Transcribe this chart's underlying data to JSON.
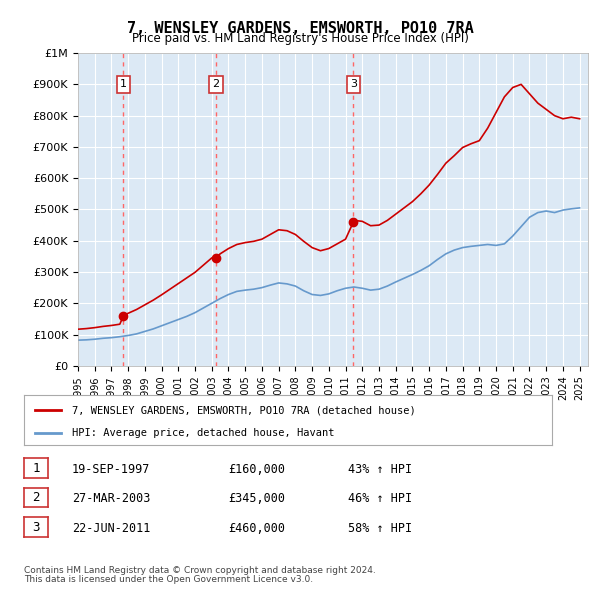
{
  "title": "7, WENSLEY GARDENS, EMSWORTH, PO10 7RA",
  "subtitle": "Price paid vs. HM Land Registry's House Price Index (HPI)",
  "background_color": "#dce9f5",
  "plot_bg_color": "#dce9f5",
  "sales": [
    {
      "date": "1997-09-19",
      "price": 160000,
      "label": "1",
      "x": 1997.72
    },
    {
      "date": "2003-03-27",
      "price": 345000,
      "label": "2",
      "x": 2003.24
    },
    {
      "date": "2011-06-22",
      "price": 460000,
      "label": "3",
      "x": 2011.47
    }
  ],
  "sale_labels": [
    {
      "num": "1",
      "date": "19-SEP-1997",
      "price": "£160,000",
      "hpi": "43% ↑ HPI"
    },
    {
      "num": "2",
      "date": "27-MAR-2003",
      "price": "£345,000",
      "hpi": "46% ↑ HPI"
    },
    {
      "num": "3",
      "date": "22-JUN-2011",
      "price": "£460,000",
      "hpi": "58% ↑ HPI"
    }
  ],
  "legend_line1": "7, WENSLEY GARDENS, EMSWORTH, PO10 7RA (detached house)",
  "legend_line2": "HPI: Average price, detached house, Havant",
  "footer1": "Contains HM Land Registry data © Crown copyright and database right 2024.",
  "footer2": "This data is licensed under the Open Government Licence v3.0.",
  "red_line_color": "#cc0000",
  "blue_line_color": "#6699cc",
  "marker_color": "#cc0000",
  "vline_color": "#ff6666",
  "ylim": [
    0,
    1000000
  ],
  "yticks": [
    0,
    100000,
    200000,
    300000,
    400000,
    500000,
    600000,
    700000,
    800000,
    900000,
    1000000
  ],
  "ytick_labels": [
    "£0",
    "£100K",
    "£200K",
    "£300K",
    "£400K",
    "£500K",
    "£600K",
    "£700K",
    "£800K",
    "£900K",
    "£1M"
  ],
  "xlim": [
    1995,
    2025.5
  ],
  "hpi_data_x": [
    1995,
    1995.5,
    1996,
    1996.5,
    1997,
    1997.5,
    1998,
    1998.5,
    1999,
    1999.5,
    2000,
    2000.5,
    2001,
    2001.5,
    2002,
    2002.5,
    2003,
    2003.5,
    2004,
    2004.5,
    2005,
    2005.5,
    2006,
    2006.5,
    2007,
    2007.5,
    2008,
    2008.5,
    2009,
    2009.5,
    2010,
    2010.5,
    2011,
    2011.5,
    2012,
    2012.5,
    2013,
    2013.5,
    2014,
    2014.5,
    2015,
    2015.5,
    2016,
    2016.5,
    2017,
    2017.5,
    2018,
    2018.5,
    2019,
    2019.5,
    2020,
    2020.5,
    2021,
    2021.5,
    2022,
    2022.5,
    2023,
    2023.5,
    2024,
    2024.5,
    2025
  ],
  "hpi_data_y": [
    82000,
    83000,
    85000,
    88000,
    90000,
    93000,
    97000,
    102000,
    110000,
    118000,
    128000,
    138000,
    148000,
    158000,
    170000,
    185000,
    200000,
    215000,
    228000,
    238000,
    242000,
    245000,
    250000,
    258000,
    265000,
    262000,
    255000,
    240000,
    228000,
    225000,
    230000,
    240000,
    248000,
    252000,
    248000,
    242000,
    245000,
    255000,
    268000,
    280000,
    292000,
    305000,
    320000,
    340000,
    358000,
    370000,
    378000,
    382000,
    385000,
    388000,
    385000,
    390000,
    415000,
    445000,
    475000,
    490000,
    495000,
    490000,
    498000,
    502000,
    505000
  ],
  "red_data_x": [
    1995,
    1995.5,
    1996,
    1996.5,
    1997,
    1997.5,
    1997.72,
    1998,
    1998.5,
    1999,
    1999.5,
    2000,
    2000.5,
    2001,
    2001.5,
    2002,
    2002.5,
    2003,
    2003.24,
    2003.5,
    2004,
    2004.5,
    2005,
    2005.5,
    2006,
    2006.5,
    2007,
    2007.5,
    2008,
    2008.5,
    2009,
    2009.5,
    2010,
    2010.5,
    2011,
    2011.47,
    2011.5,
    2012,
    2012.5,
    2013,
    2013.5,
    2014,
    2014.5,
    2015,
    2015.5,
    2016,
    2016.5,
    2017,
    2017.5,
    2018,
    2018.5,
    2019,
    2019.5,
    2020,
    2020.5,
    2021,
    2021.5,
    2022,
    2022.5,
    2023,
    2023.5,
    2024,
    2024.5,
    2025
  ],
  "red_data_y": [
    117000,
    119000,
    122000,
    126000,
    129000,
    133000,
    160000,
    168000,
    180000,
    195000,
    210000,
    227000,
    245000,
    263000,
    281000,
    299000,
    322000,
    345000,
    345000,
    358000,
    375000,
    388000,
    394000,
    398000,
    405000,
    420000,
    435000,
    432000,
    420000,
    398000,
    378000,
    368000,
    375000,
    390000,
    405000,
    460000,
    465000,
    462000,
    448000,
    450000,
    465000,
    485000,
    505000,
    525000,
    550000,
    578000,
    612000,
    648000,
    672000,
    698000,
    710000,
    720000,
    760000,
    810000,
    860000,
    890000,
    900000,
    870000,
    840000,
    820000,
    800000,
    790000,
    795000,
    790000
  ]
}
